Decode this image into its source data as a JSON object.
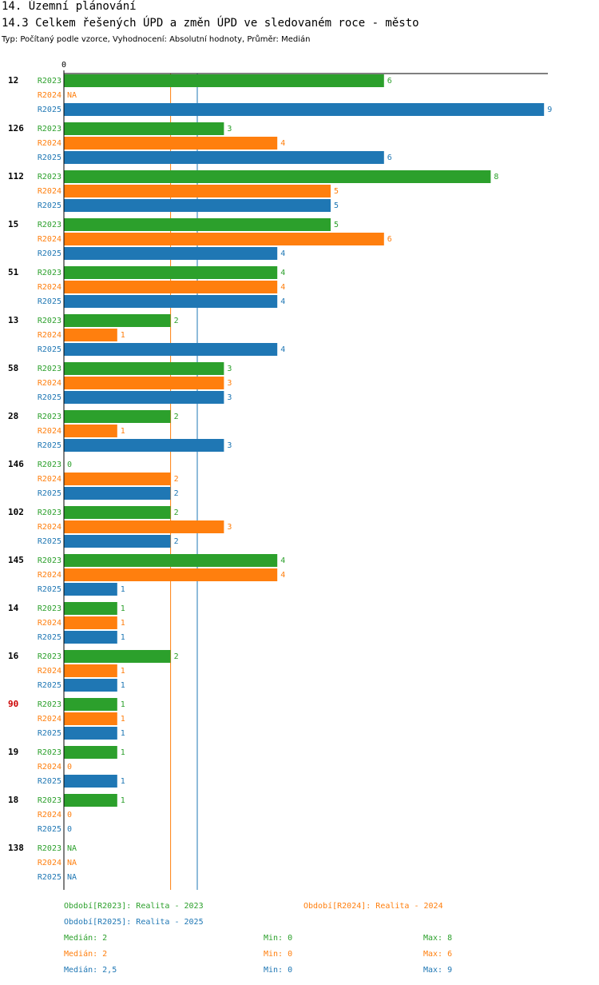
{
  "header": {
    "section": "14. Územní plánování",
    "title": "14.3 Celkem řešených ÚPD a změn ÚPD ve sledovaném roce - město",
    "subtitle": "Typ: Počítaný podle vzorce, Vyhodnocení: Absolutní hodnoty, Průměr: Medián"
  },
  "colors": {
    "R2023": "#2ca02c",
    "R2024": "#ff7f0e",
    "R2025": "#1f77b4",
    "highlight": "#cc0000",
    "axis": "#000000"
  },
  "chart_data": {
    "type": "bar",
    "orientation": "horizontal",
    "axis_zero_label": "0",
    "xlim": [
      0,
      9
    ],
    "series_names": [
      "R2023",
      "R2024",
      "R2025"
    ],
    "categories": [
      {
        "label": "12",
        "highlight": false,
        "values": [
          6,
          "NA",
          9
        ]
      },
      {
        "label": "126",
        "highlight": false,
        "values": [
          3,
          4,
          6
        ]
      },
      {
        "label": "112",
        "highlight": false,
        "values": [
          8,
          5,
          5
        ]
      },
      {
        "label": "15",
        "highlight": false,
        "values": [
          5,
          6,
          4
        ]
      },
      {
        "label": "51",
        "highlight": false,
        "values": [
          4,
          4,
          4
        ]
      },
      {
        "label": "13",
        "highlight": false,
        "values": [
          2,
          1,
          4
        ]
      },
      {
        "label": "58",
        "highlight": false,
        "values": [
          3,
          3,
          3
        ]
      },
      {
        "label": "28",
        "highlight": false,
        "values": [
          2,
          1,
          3
        ]
      },
      {
        "label": "146",
        "highlight": false,
        "values": [
          0,
          2,
          2
        ]
      },
      {
        "label": "102",
        "highlight": false,
        "values": [
          2,
          3,
          2
        ]
      },
      {
        "label": "145",
        "highlight": false,
        "values": [
          4,
          4,
          1
        ]
      },
      {
        "label": "14",
        "highlight": false,
        "values": [
          1,
          1,
          1
        ]
      },
      {
        "label": "16",
        "highlight": false,
        "values": [
          2,
          1,
          1
        ]
      },
      {
        "label": "90",
        "highlight": true,
        "values": [
          1,
          1,
          1
        ]
      },
      {
        "label": "19",
        "highlight": false,
        "values": [
          1,
          0,
          1
        ]
      },
      {
        "label": "18",
        "highlight": false,
        "values": [
          1,
          0,
          0
        ]
      },
      {
        "label": "138",
        "highlight": false,
        "values": [
          "NA",
          "NA",
          "NA"
        ]
      }
    ],
    "value_labels": [
      [
        "6",
        "NA",
        "9"
      ],
      [
        "3",
        "4",
        "6"
      ],
      [
        "8",
        "5",
        "5"
      ],
      [
        "5",
        "6",
        "4"
      ],
      [
        "4",
        "4",
        "4"
      ],
      [
        "2",
        "1",
        "4"
      ],
      [
        "3",
        "3",
        "3"
      ],
      [
        "2",
        "1",
        "3"
      ],
      [
        "0",
        "2",
        "2"
      ],
      [
        "2",
        "3",
        "2"
      ],
      [
        "4",
        "4",
        "1"
      ],
      [
        "1",
        "1",
        "1"
      ],
      [
        "2",
        "1",
        "1"
      ],
      [
        "1",
        "1",
        "1"
      ],
      [
        "1",
        "0",
        "1"
      ],
      [
        "1",
        "0",
        "0"
      ],
      [
        "NA",
        "NA",
        "NA"
      ]
    ],
    "reference_lines": [
      {
        "series": "R2024",
        "value": 2
      },
      {
        "series": "R2025",
        "value": 2.5
      }
    ]
  },
  "legend": {
    "period_r2023": "Období[R2023]: Realita - 2023",
    "period_r2024": "Období[R2024]: Realita - 2024",
    "period_r2025": "Období[R2025]: Realita - 2025",
    "stats": [
      {
        "median": "Medián: 2",
        "min": "Min: 0",
        "max": "Max: 8"
      },
      {
        "median": "Medián: 2",
        "min": "Min: 0",
        "max": "Max: 6"
      },
      {
        "median": "Medián: 2,5",
        "min": "Min: 0",
        "max": "Max: 9"
      }
    ]
  }
}
